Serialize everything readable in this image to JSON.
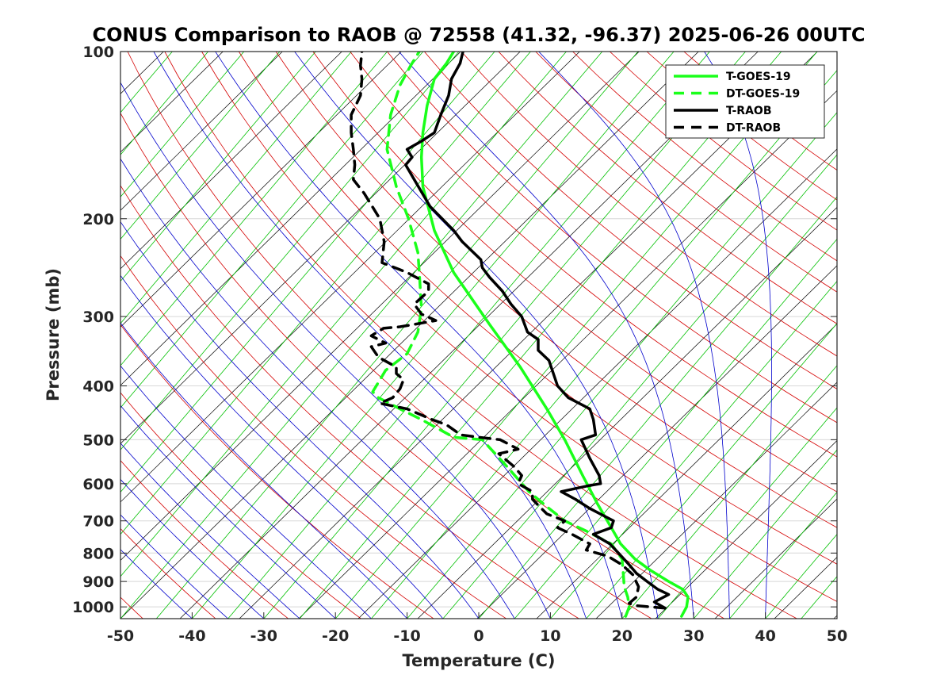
{
  "chart_data": {
    "type": "line",
    "chart_kind": "skew-T log-P sounding",
    "title": "CONUS Comparison to RAOB @ 72558 (41.32, -96.37) 2025-06-26 00UTC",
    "xlabel": "Temperature (C)",
    "ylabel": "Pressure (mb)",
    "xlim": [
      -50,
      50
    ],
    "ylim": [
      1050,
      100
    ],
    "xticks": [
      "-50",
      "-40",
      "-30",
      "-20",
      "-10",
      "0",
      "10",
      "20",
      "30",
      "40",
      "50"
    ],
    "yticks": [
      "100",
      "200",
      "300",
      "400",
      "500",
      "600",
      "700",
      "800",
      "900",
      "1000"
    ],
    "legend_location": "top-right",
    "colors": {
      "goes": "#1aff1a",
      "raob": "#000000",
      "isotherm": "#00c000",
      "dry_adiabat": "#d40000",
      "moist_adiabat": "#0000cc",
      "skewed_grid": "#000000",
      "horizontal_grid": "#d8d8d8"
    },
    "series": [
      {
        "name": "T-GOES-19",
        "style": "solid",
        "color": "#1aff1a",
        "points": [
          [
            28.3,
            1040
          ],
          [
            29,
            1000
          ],
          [
            29.2,
            960
          ],
          [
            28.5,
            930
          ],
          [
            26.5,
            900
          ],
          [
            24,
            860
          ],
          [
            21.8,
            820
          ],
          [
            19.8,
            770
          ],
          [
            18.5,
            720
          ],
          [
            16.5,
            650
          ],
          [
            14.5,
            580
          ],
          [
            12,
            500
          ],
          [
            9.5,
            440
          ],
          [
            5.8,
            370
          ],
          [
            1.5,
            310
          ],
          [
            -3.5,
            250
          ],
          [
            -6.2,
            210
          ],
          [
            -7.8,
            175
          ],
          [
            -8,
            155
          ],
          [
            -7.8,
            140
          ],
          [
            -7.2,
            125
          ],
          [
            -6.2,
            112
          ],
          [
            -4.5,
            105
          ],
          [
            -3.5,
            100
          ]
        ]
      },
      {
        "name": "DT-GOES-19",
        "style": "dashed",
        "color": "#1aff1a",
        "points": [
          [
            20.5,
            1040
          ],
          [
            21,
            1000
          ],
          [
            20.8,
            960
          ],
          [
            20.3,
            920
          ],
          [
            20.2,
            880
          ],
          [
            20,
            820
          ],
          [
            18.5,
            770
          ],
          [
            15,
            730
          ],
          [
            12,
            700
          ],
          [
            9.5,
            660
          ],
          [
            7,
            620
          ],
          [
            4,
            560
          ],
          [
            0.5,
            500
          ],
          [
            -3.5,
            495
          ],
          [
            -8,
            460
          ],
          [
            -11,
            440
          ],
          [
            -14,
            420
          ],
          [
            -14.8,
            410
          ],
          [
            -13,
            375
          ],
          [
            -10,
            350
          ],
          [
            -8.5,
            320
          ],
          [
            -8,
            290
          ],
          [
            -8.3,
            250
          ],
          [
            -8.5,
            230
          ],
          [
            -9.8,
            200
          ],
          [
            -11.5,
            175
          ],
          [
            -12.8,
            150
          ],
          [
            -12.3,
            130
          ],
          [
            -11,
            115
          ],
          [
            -9.5,
            106
          ],
          [
            -8.3,
            100
          ]
        ]
      },
      {
        "name": "T-RAOB",
        "style": "solid",
        "color": "#000000",
        "points": [
          [
            26,
            1005
          ],
          [
            24.5,
            980
          ],
          [
            26.5,
            950
          ],
          [
            25,
            930
          ],
          [
            23.5,
            900
          ],
          [
            22,
            870
          ],
          [
            21,
            840
          ],
          [
            19.5,
            800
          ],
          [
            18.3,
            770
          ],
          [
            16,
            740
          ],
          [
            18.5,
            720
          ],
          [
            18.8,
            700
          ],
          [
            15.5,
            665
          ],
          [
            13.5,
            640
          ],
          [
            11.5,
            620
          ],
          [
            15.3,
            605
          ],
          [
            17,
            600
          ],
          [
            16.8,
            580
          ],
          [
            15.5,
            540
          ],
          [
            14.3,
            500
          ],
          [
            16.3,
            490
          ],
          [
            16,
            460
          ],
          [
            15.5,
            440
          ],
          [
            12.5,
            420
          ],
          [
            11,
            400
          ],
          [
            9.8,
            360
          ],
          [
            8.3,
            345
          ],
          [
            8.3,
            330
          ],
          [
            6.8,
            320
          ],
          [
            6,
            300
          ],
          [
            4.5,
            285
          ],
          [
            3.3,
            270
          ],
          [
            1.5,
            255
          ],
          [
            0.5,
            245
          ],
          [
            0.3,
            237
          ],
          [
            -2.3,
            220
          ],
          [
            -3.5,
            210
          ],
          [
            -6.8,
            190
          ],
          [
            -9,
            170
          ],
          [
            -10.2,
            160
          ],
          [
            -9.3,
            155
          ],
          [
            -10,
            150
          ],
          [
            -8,
            145
          ],
          [
            -6.2,
            140
          ],
          [
            -5.3,
            130
          ],
          [
            -4.2,
            120
          ],
          [
            -3.8,
            112
          ],
          [
            -2.6,
            105
          ],
          [
            -2.2,
            100
          ]
        ]
      },
      {
        "name": "DT-RAOB",
        "style": "dashed",
        "color": "#000000",
        "points": [
          [
            26,
            1005
          ],
          [
            24,
            1000
          ],
          [
            22,
            995
          ],
          [
            21,
            985
          ],
          [
            22,
            960
          ],
          [
            22.3,
            920
          ],
          [
            21.5,
            875
          ],
          [
            20,
            840
          ],
          [
            18,
            810
          ],
          [
            15,
            790
          ],
          [
            15.5,
            770
          ],
          [
            13,
            740
          ],
          [
            11,
            720
          ],
          [
            12,
            700
          ],
          [
            9.5,
            680
          ],
          [
            8.5,
            660
          ],
          [
            7.5,
            640
          ],
          [
            7.5,
            620
          ],
          [
            5.5,
            600
          ],
          [
            6,
            580
          ],
          [
            5,
            560
          ],
          [
            2.8,
            530
          ],
          [
            5.5,
            520
          ],
          [
            3,
            500
          ],
          [
            0,
            495
          ],
          [
            -2.5,
            490
          ],
          [
            -4.5,
            470
          ],
          [
            -6.5,
            460
          ],
          [
            -10,
            440
          ],
          [
            -13.8,
            430
          ],
          [
            -12,
            420
          ],
          [
            -11,
            405
          ],
          [
            -10.5,
            390
          ],
          [
            -11.5,
            380
          ],
          [
            -11.5,
            370
          ],
          [
            -14,
            355
          ],
          [
            -15,
            340
          ],
          [
            -13,
            335
          ],
          [
            -15,
            325
          ],
          [
            -13.3,
            315
          ],
          [
            -11,
            313
          ],
          [
            -9,
            310
          ],
          [
            -6,
            305
          ],
          [
            -8,
            297
          ],
          [
            -9,
            285
          ],
          [
            -7,
            270
          ],
          [
            -7,
            262
          ],
          [
            -8.5,
            256
          ],
          [
            -10,
            250
          ],
          [
            -11,
            247
          ],
          [
            -13.5,
            240
          ],
          [
            -13.2,
            220
          ],
          [
            -13.8,
            200
          ],
          [
            -16,
            180
          ],
          [
            -17.5,
            170
          ],
          [
            -17.3,
            160
          ],
          [
            -17.5,
            150
          ],
          [
            -17.8,
            140
          ],
          [
            -17.8,
            130
          ],
          [
            -16.5,
            120
          ],
          [
            -16.3,
            112
          ],
          [
            -16.5,
            106
          ],
          [
            -16.3,
            100
          ]
        ]
      }
    ]
  }
}
